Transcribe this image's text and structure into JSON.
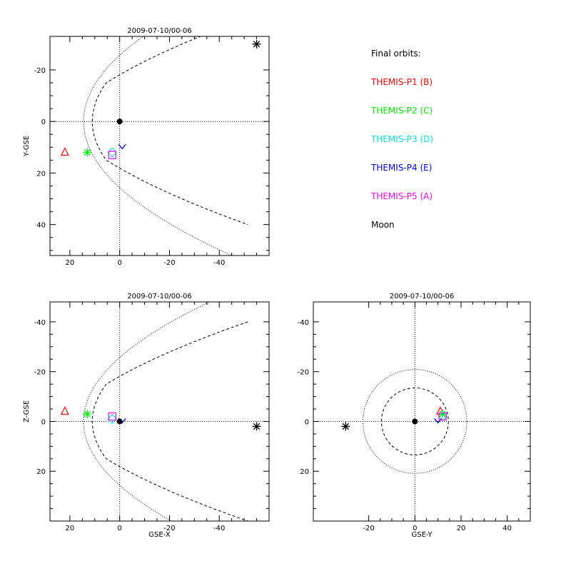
{
  "legend": {
    "title": "Final orbits:",
    "items": [
      {
        "label": "THEMIS-P1 (B)",
        "color": "#ff0000"
      },
      {
        "label": "THEMIS-P2 (C)",
        "color": "#00ee00"
      },
      {
        "label": "THEMIS-P3 (D)",
        "color": "#00e5e5"
      },
      {
        "label": "THEMIS-P4 (E)",
        "color": "#0000ff"
      },
      {
        "label": "THEMIS-P5 (A)",
        "color": "#ff00ff"
      },
      {
        "label": "Moon",
        "color": "#000000"
      }
    ]
  },
  "chart_data": [
    {
      "type": "scatter",
      "title": "2009-07-10/00-06",
      "xlabel": "",
      "ylabel": "Y-GSE",
      "xlim": [
        28,
        -60
      ],
      "ylim": [
        -33,
        52
      ],
      "xticks": [
        20,
        0,
        -20,
        -40
      ],
      "yticks": [
        -20,
        0,
        20,
        40
      ],
      "xtick_labels": [
        "20",
        "0",
        "-20",
        "-40"
      ],
      "ytick_labels": [
        "-20",
        "0",
        "20",
        "40"
      ],
      "grid": "dotted zero lines",
      "markers": [
        {
          "name": "THEMIS-P1 (B)",
          "x": 22,
          "y": 12,
          "shape": "triangle",
          "color": "#ff0000"
        },
        {
          "name": "THEMIS-P2 (C)",
          "x": 13,
          "y": 12,
          "shape": "star",
          "color": "#00ee00"
        },
        {
          "name": "THEMIS-P3 (D)",
          "x": 3,
          "y": 12,
          "shape": "diamond",
          "color": "#00e5e5"
        },
        {
          "name": "THEMIS-P4 (E)",
          "x": -1,
          "y": 10,
          "shape": "v",
          "color": "#0000ff"
        },
        {
          "name": "THEMIS-P5 (A)",
          "x": 3,
          "y": 13,
          "shape": "square",
          "color": "#ff00ff"
        },
        {
          "name": "Moon",
          "x": -55,
          "y": -30,
          "shape": "star",
          "color": "#000000"
        },
        {
          "name": "Earth",
          "x": 0,
          "y": 0,
          "shape": "dot",
          "color": "#000000"
        }
      ]
    },
    {
      "type": "scatter",
      "title": "2009-07-10/00-06",
      "xlabel": "GSE-X",
      "ylabel": "Z-GSE",
      "xlim": [
        28,
        -60
      ],
      "ylim": [
        -48,
        40
      ],
      "xticks": [
        20,
        0,
        -20,
        -40
      ],
      "yticks": [
        -40,
        -20,
        0,
        20
      ],
      "xtick_labels": [
        "20",
        "0",
        "-20",
        "-40"
      ],
      "ytick_labels": [
        "-40",
        "-20",
        "0",
        "20"
      ],
      "grid": "dotted zero lines",
      "markers": [
        {
          "name": "THEMIS-P1 (B)",
          "x": 22,
          "y": -4,
          "shape": "triangle",
          "color": "#ff0000"
        },
        {
          "name": "THEMIS-P2 (C)",
          "x": 13,
          "y": -3,
          "shape": "star",
          "color": "#00ee00"
        },
        {
          "name": "THEMIS-P3 (D)",
          "x": 3,
          "y": -1,
          "shape": "diamond",
          "color": "#00e5e5"
        },
        {
          "name": "THEMIS-P4 (E)",
          "x": -1,
          "y": 0,
          "shape": "v",
          "color": "#0000ff"
        },
        {
          "name": "THEMIS-P5 (A)",
          "x": 3,
          "y": -2,
          "shape": "square",
          "color": "#ff00ff"
        },
        {
          "name": "Moon",
          "x": -55,
          "y": 2,
          "shape": "star",
          "color": "#000000"
        },
        {
          "name": "Earth",
          "x": 0,
          "y": 0,
          "shape": "dot",
          "color": "#000000"
        }
      ]
    },
    {
      "type": "scatter",
      "title": "2009-07-10/00-06",
      "xlabel": "GSE-Y",
      "ylabel": "",
      "xlim": [
        -44,
        50
      ],
      "ylim": [
        -48,
        40
      ],
      "xticks": [
        -20,
        0,
        20,
        40
      ],
      "yticks": [
        -40,
        -20,
        0,
        20
      ],
      "xtick_labels": [
        "-20",
        "0",
        "20",
        "40"
      ],
      "ytick_labels": [
        "-40",
        "-20",
        "0",
        "20"
      ],
      "grid": "dotted zero lines",
      "markers": [
        {
          "name": "THEMIS-P1 (B)",
          "x": 11,
          "y": -4,
          "shape": "triangle",
          "color": "#ff0000"
        },
        {
          "name": "THEMIS-P2 (C)",
          "x": 12,
          "y": -3,
          "shape": "star",
          "color": "#00ee00"
        },
        {
          "name": "THEMIS-P3 (D)",
          "x": 12,
          "y": -2,
          "shape": "diamond",
          "color": "#00e5e5"
        },
        {
          "name": "THEMIS-P4 (E)",
          "x": 10,
          "y": 0,
          "shape": "v",
          "color": "#0000ff"
        },
        {
          "name": "THEMIS-P5 (A)",
          "x": 12,
          "y": -2,
          "shape": "square",
          "color": "#ff00ff"
        },
        {
          "name": "Moon",
          "x": -30,
          "y": 2,
          "shape": "star",
          "color": "#000000"
        },
        {
          "name": "Earth",
          "x": 0,
          "y": 0,
          "shape": "dot",
          "color": "#000000"
        }
      ]
    }
  ]
}
